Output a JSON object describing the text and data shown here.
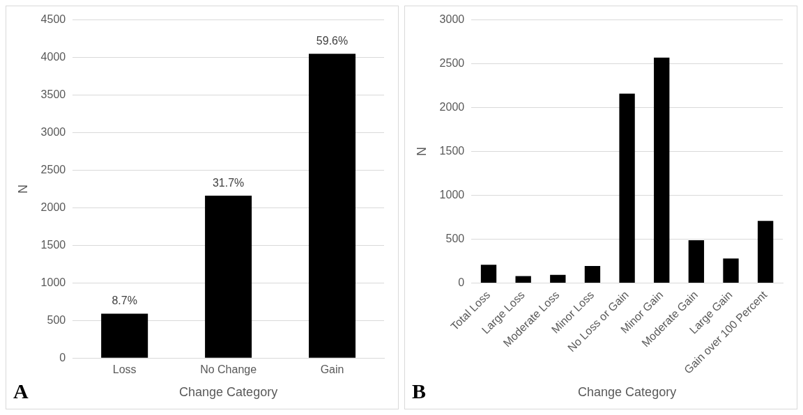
{
  "chart_data": [
    {
      "type": "bar",
      "xlabel": "Change Category",
      "ylabel": "N",
      "categories": [
        "Loss",
        "No Change",
        "Gain"
      ],
      "values": [
        590,
        2160,
        4050
      ],
      "color": "#000000",
      "ylim": [
        0,
        4500
      ],
      "yticks": [
        0,
        500,
        1000,
        1500,
        2000,
        2500,
        3000,
        3500,
        4000,
        4500
      ],
      "grid": "y",
      "legend": false,
      "annotations": [
        {
          "text": "8.7%",
          "x": "Loss",
          "y": 590
        },
        {
          "text": "31.7%",
          "x": "No Change",
          "y": 2160
        },
        {
          "text": "59.6%",
          "x": "Gain",
          "y": 4050
        },
        "A"
      ]
    },
    {
      "type": "bar",
      "xlabel": "Change Category",
      "ylabel": "N",
      "categories": [
        "Total Loss",
        "Large Loss",
        "Moderate Loss",
        "Minor Loss",
        "No Loss or Gain",
        "Minor Gain",
        "Moderate Gain",
        "Large Gain",
        "Gain over 100 Percent"
      ],
      "values": [
        210,
        80,
        95,
        195,
        2160,
        2570,
        490,
        280,
        710
      ],
      "color": "#000000",
      "ylim": [
        0,
        3000
      ],
      "yticks": [
        0,
        500,
        1000,
        1500,
        2000,
        2500,
        3000
      ],
      "grid": "y",
      "legend": false,
      "annotations": [
        "B"
      ]
    }
  ]
}
